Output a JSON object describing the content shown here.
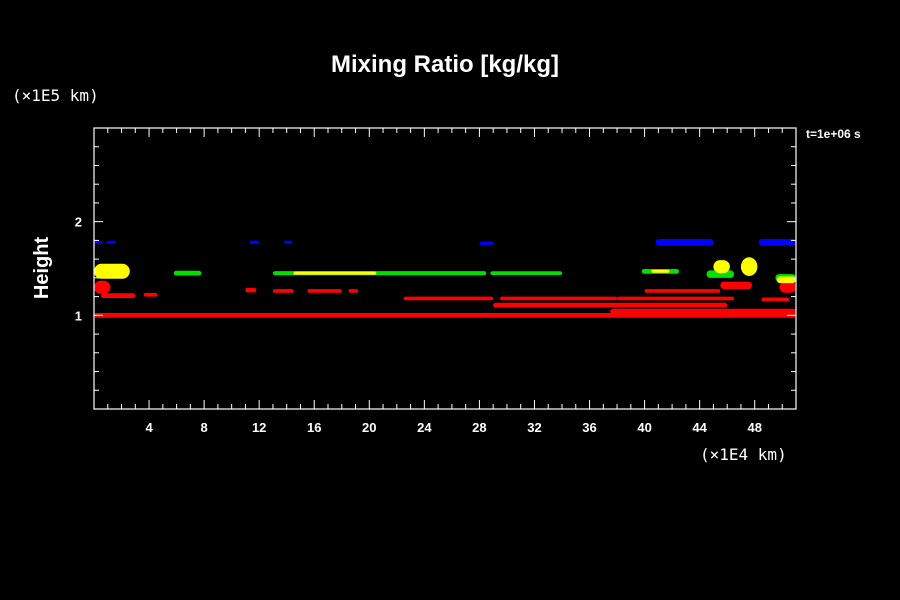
{
  "chart_data": {
    "type": "scatter",
    "title": "Mixing Ratio [kg/kg]",
    "ylabel": "Height",
    "y_unit": "(×1E5 km)",
    "x_unit": "(×1E4 km)",
    "time_label": "t=1e+06 s",
    "xlim": [
      0,
      51
    ],
    "ylim": [
      0,
      3
    ],
    "x_ticks": [
      4,
      8,
      12,
      16,
      20,
      24,
      28,
      32,
      36,
      40,
      44,
      48
    ],
    "x_tick_labels": [
      "4",
      "8",
      "12",
      "16",
      "20",
      "24",
      "28",
      "32",
      "36",
      "40",
      "44",
      "48"
    ],
    "y_ticks": [
      1,
      2
    ],
    "y_tick_labels": [
      "1",
      "2"
    ],
    "colors": {
      "red": "#ff0000",
      "green": "#00e000",
      "yellow": "#ffff00",
      "blue": "#0000ff"
    },
    "features": [
      {
        "color": "red",
        "x0": 0.0,
        "x1": 51.0,
        "y": 1.0,
        "thick": 0.05
      },
      {
        "color": "red",
        "x0": 0.0,
        "x1": 1.2,
        "y": 1.3,
        "thick": 0.14
      },
      {
        "color": "red",
        "x0": 0.5,
        "x1": 3.0,
        "y": 1.21,
        "thick": 0.05
      },
      {
        "color": "red",
        "x0": 3.6,
        "x1": 4.6,
        "y": 1.22,
        "thick": 0.04
      },
      {
        "color": "red",
        "x0": 11.0,
        "x1": 11.8,
        "y": 1.27,
        "thick": 0.05
      },
      {
        "color": "red",
        "x0": 13.0,
        "x1": 14.5,
        "y": 1.26,
        "thick": 0.04
      },
      {
        "color": "red",
        "x0": 15.5,
        "x1": 18.0,
        "y": 1.26,
        "thick": 0.04
      },
      {
        "color": "red",
        "x0": 18.5,
        "x1": 19.2,
        "y": 1.26,
        "thick": 0.04
      },
      {
        "color": "red",
        "x0": 22.5,
        "x1": 29.0,
        "y": 1.18,
        "thick": 0.04
      },
      {
        "color": "red",
        "x0": 29.5,
        "x1": 38.0,
        "y": 1.18,
        "thick": 0.04
      },
      {
        "color": "red",
        "x0": 29.0,
        "x1": 46.0,
        "y": 1.11,
        "thick": 0.05
      },
      {
        "color": "red",
        "x0": 38.0,
        "x1": 46.5,
        "y": 1.18,
        "thick": 0.04
      },
      {
        "color": "red",
        "x0": 40.0,
        "x1": 45.5,
        "y": 1.26,
        "thick": 0.04
      },
      {
        "color": "red",
        "x0": 37.5,
        "x1": 51.0,
        "y": 1.04,
        "thick": 0.06
      },
      {
        "color": "red",
        "x0": 48.5,
        "x1": 50.5,
        "y": 1.17,
        "thick": 0.04
      },
      {
        "color": "red",
        "x0": 49.8,
        "x1": 51.0,
        "y": 1.3,
        "thick": 0.12
      },
      {
        "color": "red",
        "x0": 45.5,
        "x1": 47.8,
        "y": 1.32,
        "thick": 0.08
      },
      {
        "color": "green",
        "x0": 5.8,
        "x1": 7.8,
        "y": 1.45,
        "thick": 0.05
      },
      {
        "color": "green",
        "x0": 13.0,
        "x1": 28.5,
        "y": 1.45,
        "thick": 0.045
      },
      {
        "color": "green",
        "x0": 28.8,
        "x1": 34.0,
        "y": 1.45,
        "thick": 0.04
      },
      {
        "color": "green",
        "x0": 39.8,
        "x1": 42.5,
        "y": 1.47,
        "thick": 0.05
      },
      {
        "color": "green",
        "x0": 44.5,
        "x1": 46.5,
        "y": 1.44,
        "thick": 0.08
      },
      {
        "color": "green",
        "x0": 49.5,
        "x1": 51.0,
        "y": 1.4,
        "thick": 0.08
      },
      {
        "color": "yellow",
        "x0": 0.0,
        "x1": 2.6,
        "y": 1.47,
        "thick": 0.16
      },
      {
        "color": "yellow",
        "x0": 14.5,
        "x1": 20.5,
        "y": 1.45,
        "thick": 0.035
      },
      {
        "color": "yellow",
        "x0": 40.5,
        "x1": 41.8,
        "y": 1.47,
        "thick": 0.03
      },
      {
        "color": "yellow",
        "x0": 45.0,
        "x1": 46.2,
        "y": 1.52,
        "thick": 0.14
      },
      {
        "color": "yellow",
        "x0": 47.0,
        "x1": 48.2,
        "y": 1.52,
        "thick": 0.2
      },
      {
        "color": "yellow",
        "x0": 49.6,
        "x1": 51.0,
        "y": 1.38,
        "thick": 0.07
      },
      {
        "color": "blue",
        "x0": 0.0,
        "x1": 0.6,
        "y": 1.78,
        "thick": 0.03
      },
      {
        "color": "blue",
        "x0": 0.9,
        "x1": 1.6,
        "y": 1.78,
        "thick": 0.03
      },
      {
        "color": "blue",
        "x0": 11.3,
        "x1": 12.0,
        "y": 1.78,
        "thick": 0.035
      },
      {
        "color": "blue",
        "x0": 13.8,
        "x1": 14.4,
        "y": 1.78,
        "thick": 0.03
      },
      {
        "color": "blue",
        "x0": 28.0,
        "x1": 29.0,
        "y": 1.77,
        "thick": 0.035
      },
      {
        "color": "blue",
        "x0": 40.8,
        "x1": 45.0,
        "y": 1.78,
        "thick": 0.07
      },
      {
        "color": "blue",
        "x0": 48.3,
        "x1": 51.0,
        "y": 1.78,
        "thick": 0.07
      }
    ]
  }
}
